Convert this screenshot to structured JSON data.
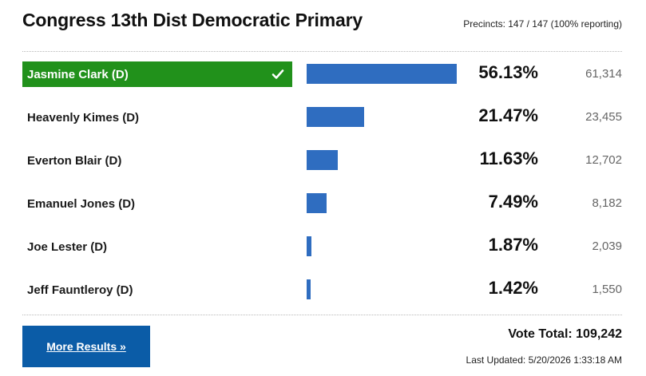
{
  "header": {
    "title": "Congress 13th Dist Democratic Primary",
    "precincts": "Precincts: 147 / 147 (100% reporting)"
  },
  "candidates": [
    {
      "name": "Jasmine Clark (D)",
      "percent_label": "56.13%",
      "percent": 56.13,
      "votes": "61,314",
      "winner": true
    },
    {
      "name": "Heavenly Kimes (D)",
      "percent_label": "21.47%",
      "percent": 21.47,
      "votes": "23,455",
      "winner": false
    },
    {
      "name": "Everton Blair (D)",
      "percent_label": "11.63%",
      "percent": 11.63,
      "votes": "12,702",
      "winner": false
    },
    {
      "name": "Emanuel Jones (D)",
      "percent_label": "7.49%",
      "percent": 7.49,
      "votes": "8,182",
      "winner": false
    },
    {
      "name": "Joe Lester (D)",
      "percent_label": "1.87%",
      "percent": 1.87,
      "votes": "2,039",
      "winner": false
    },
    {
      "name": "Jeff Fauntleroy (D)",
      "percent_label": "1.42%",
      "percent": 1.42,
      "votes": "1,550",
      "winner": false
    }
  ],
  "footer": {
    "more_results_label": "More Results »",
    "vote_total": "Vote Total: 109,242",
    "last_updated": "Last Updated: 5/20/2026 1:33:18 AM"
  },
  "colors": {
    "winner_bg": "#21911b",
    "bar": "#2f6dc0",
    "button_bg": "#0b5ca7"
  },
  "icons": {
    "winner_mark": "checkmark-icon"
  }
}
